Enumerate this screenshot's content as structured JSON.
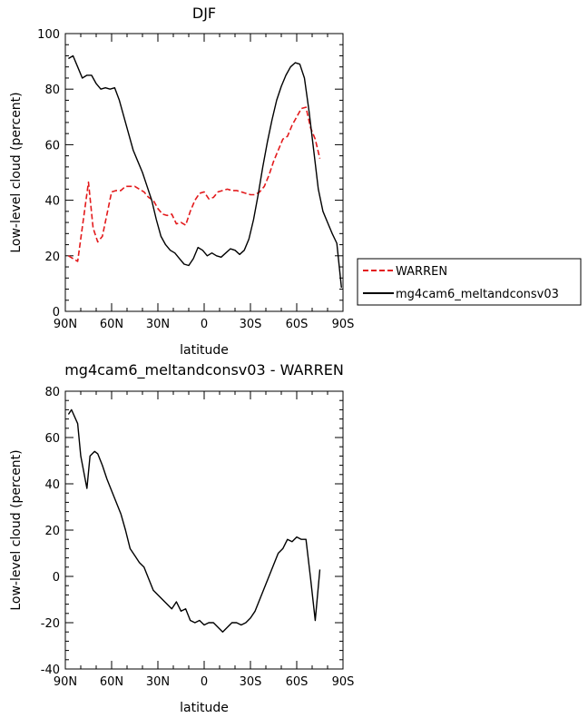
{
  "chart_data": [
    {
      "type": "line",
      "title": "DJF",
      "xlabel": "latitude",
      "ylabel": "Low-level cloud (percent)",
      "xlim": [
        90,
        -90
      ],
      "ylim": [
        0,
        100
      ],
      "xticks": [
        90,
        60,
        30,
        0,
        -30,
        -60,
        -90
      ],
      "xtick_labels": [
        "90N",
        "60N",
        "30N",
        "0",
        "30S",
        "60S",
        "90S"
      ],
      "yticks": [
        0,
        20,
        40,
        60,
        80,
        100
      ],
      "ytick_labels": [
        "0",
        "20",
        "40",
        "60",
        "80",
        "100"
      ],
      "grid": false,
      "legend": "right",
      "series": [
        {
          "name": "WARREN",
          "color": "#e31a1c",
          "dash": true,
          "x": [
            88,
            82,
            75,
            72,
            69,
            66,
            63,
            60,
            57,
            54,
            51,
            48,
            45,
            42,
            39,
            36,
            33,
            30,
            27,
            24,
            21,
            18,
            15,
            12,
            9,
            6,
            3,
            0,
            -3,
            -6,
            -9,
            -12,
            -15,
            -18,
            -21,
            -24,
            -27,
            -30,
            -33,
            -36,
            -39,
            -42,
            -45,
            -48,
            -51,
            -54,
            -57,
            -60,
            -63,
            -66,
            -69,
            -72,
            -75
          ],
          "y": [
            20,
            18,
            46.5,
            30,
            25,
            27,
            35,
            43,
            43.5,
            43.5,
            45,
            45,
            45,
            44,
            43,
            41,
            40,
            37,
            35,
            34.5,
            35,
            31.5,
            32,
            31,
            36,
            40,
            42.5,
            43,
            40.5,
            41,
            43,
            43.5,
            44,
            43.5,
            43.5,
            43,
            42.5,
            42,
            42,
            43,
            45,
            49,
            54,
            58,
            62,
            63,
            67,
            70,
            73,
            73.5,
            66,
            62,
            55
          ]
        },
        {
          "name": "mg4cam6_meltandconsv03",
          "color": "#000000",
          "dash": false,
          "x": [
            88,
            85,
            82,
            79,
            76,
            73,
            70,
            67,
            64,
            61,
            58,
            55,
            52,
            49,
            46,
            43,
            40,
            37,
            34,
            31,
            28,
            25,
            22,
            19,
            16,
            13,
            10,
            7,
            4,
            1,
            -2,
            -5,
            -8,
            -11,
            -14,
            -17,
            -20,
            -23,
            -26,
            -29,
            -32,
            -35,
            -38,
            -41,
            -44,
            -47,
            -50,
            -53,
            -56,
            -59,
            -62,
            -65,
            -68,
            -71,
            -74,
            -77,
            -80,
            -83,
            -86,
            -89
          ],
          "y": [
            91,
            92,
            88,
            84,
            85,
            85,
            82,
            80,
            80.5,
            80,
            80.5,
            76,
            70,
            64,
            58,
            54,
            50,
            45,
            40,
            33,
            27,
            24,
            22,
            21,
            19,
            17,
            16.5,
            19,
            23,
            22,
            20,
            21,
            20,
            19.5,
            21,
            22.5,
            22,
            20.5,
            22,
            26,
            33,
            42,
            52,
            61,
            69,
            76,
            81,
            85,
            88,
            89.5,
            89,
            84,
            72,
            58,
            44,
            36,
            32,
            28,
            24.5,
            8.5
          ]
        }
      ]
    },
    {
      "type": "line",
      "title": "mg4cam6_meltandconsv03 - WARREN",
      "xlabel": "latitude",
      "ylabel": "Low-level cloud (percent)",
      "xlim": [
        90,
        -90
      ],
      "ylim": [
        -40,
        80
      ],
      "xticks": [
        90,
        60,
        30,
        0,
        -30,
        -60,
        -90
      ],
      "xtick_labels": [
        "90N",
        "60N",
        "30N",
        "0",
        "30S",
        "60S",
        "90S"
      ],
      "yticks": [
        -40,
        -20,
        0,
        20,
        40,
        60,
        80
      ],
      "ytick_labels": [
        "-40",
        "-20",
        "0",
        "20",
        "40",
        "60",
        "80"
      ],
      "grid": false,
      "series": [
        {
          "color": "#000000",
          "dash": false,
          "x": [
            88,
            86,
            82,
            80,
            76,
            74,
            71,
            69,
            66,
            63,
            60,
            57,
            54,
            51,
            48,
            45,
            42,
            39,
            36,
            33,
            30,
            27,
            24,
            21,
            18,
            15,
            12,
            9,
            6,
            3,
            0,
            -3,
            -6,
            -9,
            -12,
            -15,
            -18,
            -21,
            -24,
            -27,
            -30,
            -33,
            -36,
            -39,
            -42,
            -45,
            -48,
            -51,
            -54,
            -57,
            -60,
            -63,
            -66,
            -69,
            -72,
            -75
          ],
          "y": [
            70,
            72,
            66,
            52,
            38,
            52,
            54,
            53,
            48,
            42,
            37,
            32,
            27,
            20,
            12,
            9,
            6,
            4,
            -1,
            -6,
            -8,
            -10,
            -12,
            -14,
            -11,
            -15,
            -14,
            -19,
            -20,
            -19,
            -21,
            -20,
            -20,
            -22,
            -24,
            -22,
            -20,
            -20,
            -21,
            -20,
            -18,
            -15,
            -10,
            -5,
            0,
            5,
            10,
            12,
            16,
            15,
            17,
            16,
            16,
            -1,
            -19,
            3
          ]
        }
      ]
    }
  ]
}
